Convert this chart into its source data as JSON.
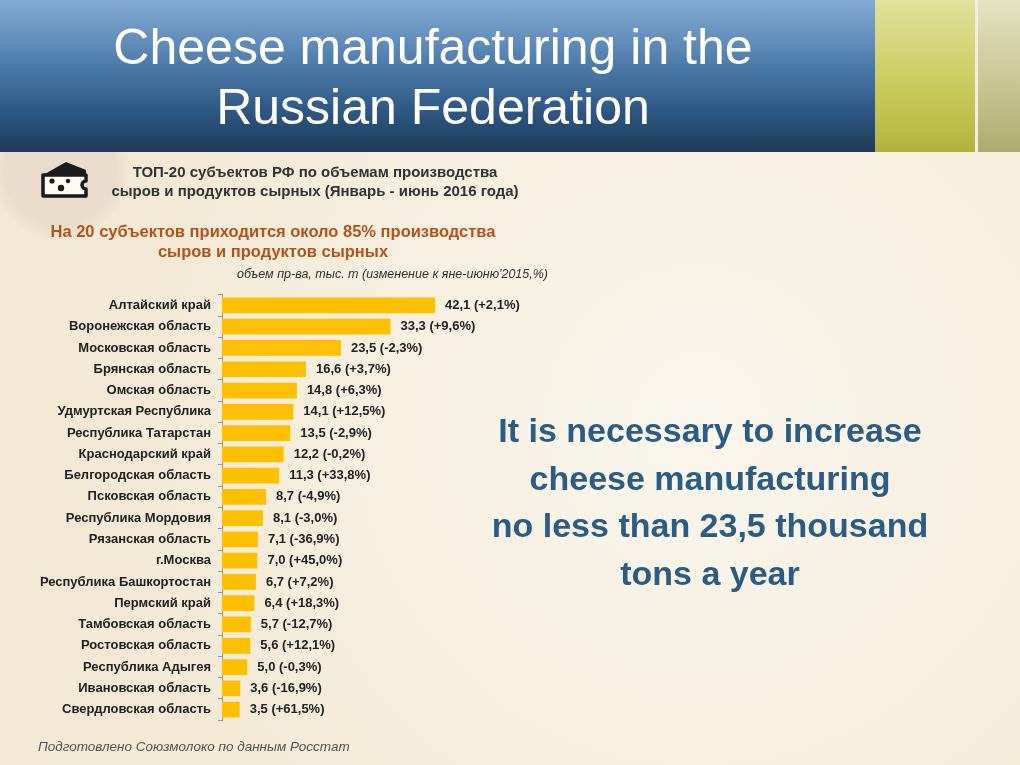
{
  "chart_data": {
    "type": "bar",
    "orientation": "horizontal",
    "title": "Cheese manufacturing in the Russian Federation",
    "subtitle": "ТОП-20 субъектов РФ по объемам производства\nсыров и продуктов сырных (Январь - июнь 2016 года)",
    "xlabel": "объем пр-ва, тыс. т (изменение к яне-июню'2015,%)",
    "categories": [
      "Алтайский край",
      "Воронежская область",
      "Московская область",
      "Брянская область",
      "Омская область",
      "Удмуртская Республика",
      "Республика Татарстан",
      "Краснодарский край",
      "Белгородская область",
      "Псковская область",
      "Республика Мордовия",
      "Рязанская область",
      "г.Москва",
      "Республика Башкортостан",
      "Пермский край",
      "Тамбовская область",
      "Ростовская область",
      "Республика Адыгея",
      "Ивановская область",
      "Свердловская область"
    ],
    "values": [
      42.1,
      33.3,
      23.5,
      16.6,
      14.8,
      14.1,
      13.5,
      12.2,
      11.3,
      8.7,
      8.1,
      7.1,
      7.0,
      6.7,
      6.4,
      5.7,
      5.6,
      5.0,
      3.6,
      3.5
    ],
    "color": "#ffc000",
    "value_labels": [
      "42,1 (+2,1%)",
      "33,3 (+9,6%)",
      "23,5 (-2,3%)",
      "16,6 (+3,7%)",
      "14,8 (+6,3%)",
      "14,1 (+12,5%)",
      "13,5 (-2,9%)",
      "12,2 (-0,2%)",
      "11,3 (+33,8%)",
      "8,7 (-4,9%)",
      "8,1 (-3,0%)",
      "7,1 (-36,9%)",
      "7,0 (+45,0%)",
      "6,7 (+7,2%)",
      "6,4 (+18,3%)",
      "5,7 (-12,7%)",
      "5,6 (+12,1%)",
      "5,0 (-0,3%)",
      "3,6 (-16,9%)",
      "3,5 (+61,5%)"
    ],
    "annotations": [
      "На 20 субъектов приходится около 85% производства\nсыров и продуктов сырных",
      "It is necessary to increase\ncheese manufacturing\nno less than 23,5 thousand\ntons a year",
      "Подготовлено Союзмолоко по данным Росстат"
    ]
  }
}
